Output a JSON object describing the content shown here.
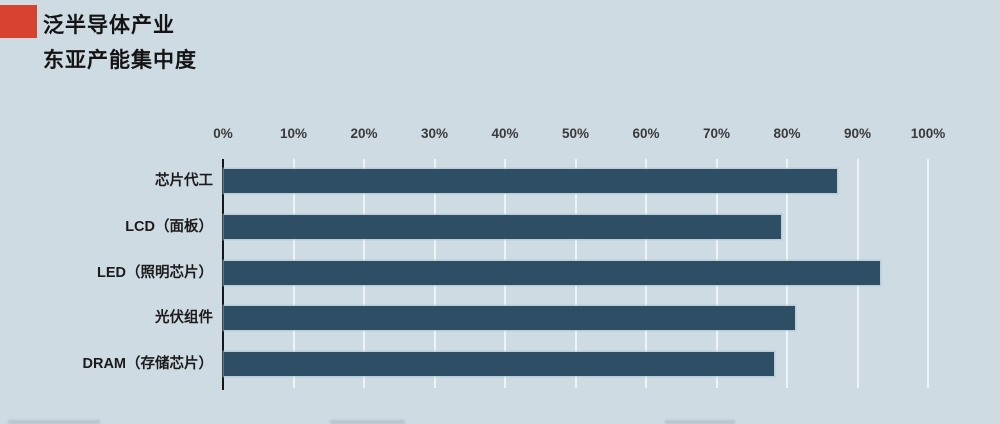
{
  "header": {
    "title_line1": "泛半导体产业",
    "title_line2": "东亚产能集中度"
  },
  "colors": {
    "background": "#cfdbe3",
    "accent_red": "#d7432f",
    "bar": "#2e4e66",
    "gridline": "#eef3f6",
    "axis": "#161616",
    "tick_text": "#3a3a3a",
    "label_text": "#1b1b1b"
  },
  "chart_data": {
    "type": "bar",
    "orientation": "horizontal",
    "title": "泛半导体产业 东亚产能集中度",
    "categories": [
      "芯片代工",
      "LCD（面板）",
      "LED（照明芯片）",
      "光伏组件",
      "DRAM（存储芯片）"
    ],
    "values": [
      87,
      79,
      93,
      81,
      78
    ],
    "value_unit": "%",
    "xlim": [
      0,
      100
    ],
    "x_ticks": [
      "0%",
      "10%",
      "20%",
      "30%",
      "40%",
      "50%",
      "60%",
      "70%",
      "80%",
      "90%",
      "100%"
    ],
    "xlabel": "",
    "ylabel": "",
    "grid": true,
    "legend": "none",
    "axis_position": "top"
  }
}
